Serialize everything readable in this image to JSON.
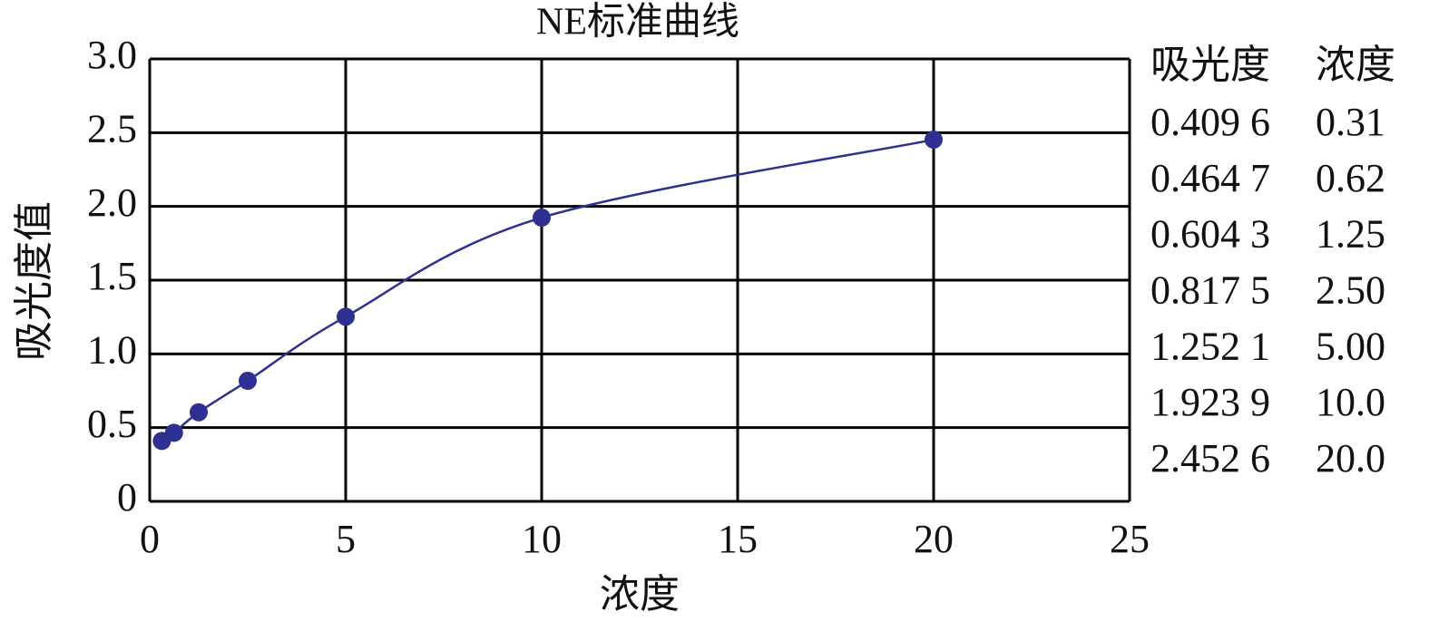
{
  "chart_data": {
    "type": "scatter",
    "title": "NE标准曲线",
    "x_label": "浓度",
    "y_label": "吸光度值",
    "x": [
      0.31,
      0.62,
      1.25,
      2.5,
      5,
      10,
      20
    ],
    "series": [
      {
        "color": "#2e3192",
        "values": [
          0.4096,
          0.4647,
          0.6043,
          0.8175,
          1.2521,
          1.9239,
          2.4526
        ]
      }
    ],
    "xlim": [
      0,
      25
    ],
    "xticks": [
      0,
      5,
      10,
      15,
      20,
      25
    ],
    "ylim": [
      0,
      3
    ],
    "yticks": [
      0,
      0.5,
      {
        "value": 1,
        "label": "1.0"
      },
      1.5,
      {
        "value": 2,
        "label": "2.0"
      },
      2.5,
      {
        "value": 3,
        "label": "3.0"
      }
    ],
    "grid": true
  },
  "table": {
    "columns": [
      "吸光度",
      "浓度"
    ],
    "rows": [
      [
        "0.409 6",
        "0.31"
      ],
      [
        "0.464 7",
        "0.62"
      ],
      [
        "0.604 3",
        "1.25"
      ],
      [
        "0.817 5",
        "2.50"
      ],
      [
        "1.252 1",
        "5.00"
      ],
      [
        "1.923 9",
        "10.0"
      ],
      [
        "2.452 6",
        "20.0"
      ]
    ]
  }
}
